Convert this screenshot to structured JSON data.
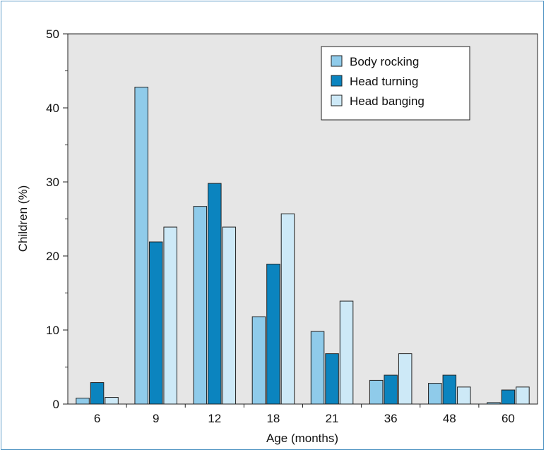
{
  "chart_data": {
    "type": "bar",
    "categories": [
      "6",
      "9",
      "12",
      "18",
      "21",
      "36",
      "48",
      "60"
    ],
    "series": [
      {
        "name": "Body rocking",
        "values": [
          0.8,
          42.8,
          26.7,
          11.8,
          9.8,
          3.2,
          2.8,
          0.2
        ],
        "color": "#8fcbea"
      },
      {
        "name": "Head turning",
        "values": [
          2.9,
          21.9,
          29.8,
          18.9,
          6.8,
          3.9,
          3.9,
          1.9
        ],
        "color": "#0b84bf"
      },
      {
        "name": "Head banging",
        "values": [
          0.9,
          23.9,
          23.9,
          25.7,
          13.9,
          6.8,
          2.3,
          2.3
        ],
        "color": "#cde9f7"
      }
    ],
    "xlabel": "Age (months)",
    "ylabel": "Children (%)",
    "ylim": [
      0,
      50
    ],
    "yticks": [
      "0",
      "10",
      "20",
      "30",
      "40",
      "50"
    ],
    "legend_position": "top-right",
    "plot_background": "#e6e6e6"
  }
}
